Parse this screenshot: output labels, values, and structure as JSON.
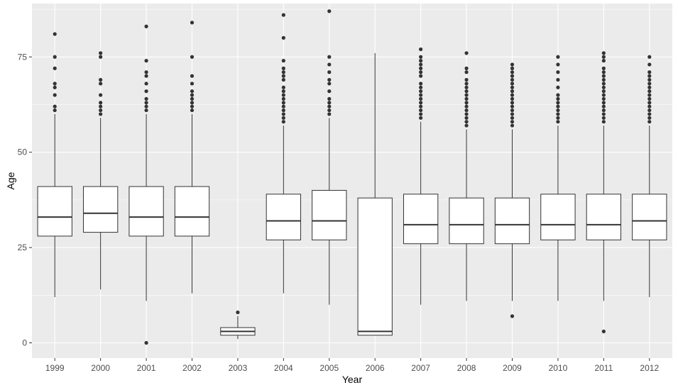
{
  "chart_data": {
    "type": "box",
    "xlabel": "Year",
    "ylabel": "Age",
    "ylim": [
      -4,
      89
    ],
    "yticks": [
      0,
      25,
      50,
      75
    ],
    "grid": true,
    "colors": {
      "panel_bg": "#EBEBEB",
      "grid_major": "#FFFFFF",
      "box_fill": "#FFFFFF",
      "box_line": "#333333",
      "outlier": "#333333"
    },
    "boxes": [
      {
        "year": "1999",
        "lower_whisker": 12,
        "q1": 28,
        "median": 33,
        "q3": 41,
        "upper_whisker": 60,
        "outliers": [
          61,
          62,
          65,
          67,
          68,
          72,
          75,
          81
        ]
      },
      {
        "year": "2000",
        "lower_whisker": 14,
        "q1": 29,
        "median": 34,
        "q3": 41,
        "upper_whisker": 59,
        "outliers": [
          60,
          61,
          62,
          63,
          65,
          68,
          69,
          75,
          76
        ]
      },
      {
        "year": "2001",
        "lower_whisker": 11,
        "q1": 28,
        "median": 33,
        "q3": 41,
        "upper_whisker": 60,
        "outliers": [
          0,
          61,
          62,
          63,
          64,
          66,
          68,
          70,
          71,
          74,
          83
        ]
      },
      {
        "year": "2002",
        "lower_whisker": 13,
        "q1": 28,
        "median": 33,
        "q3": 41,
        "upper_whisker": 60,
        "outliers": [
          61,
          62,
          63,
          64,
          65,
          66,
          68,
          70,
          75,
          84
        ]
      },
      {
        "year": "2003",
        "lower_whisker": 1,
        "q1": 2,
        "median": 3,
        "q3": 4,
        "upper_whisker": 7,
        "outliers": [
          8
        ]
      },
      {
        "year": "2004",
        "lower_whisker": 13,
        "q1": 27,
        "median": 32,
        "q3": 39,
        "upper_whisker": 57,
        "outliers": [
          58,
          59,
          60,
          61,
          62,
          63,
          64,
          65,
          66,
          67,
          69,
          70,
          71,
          72,
          74,
          80,
          86
        ]
      },
      {
        "year": "2005",
        "lower_whisker": 10,
        "q1": 27,
        "median": 32,
        "q3": 40,
        "upper_whisker": 59,
        "outliers": [
          60,
          61,
          62,
          63,
          64,
          66,
          68,
          69,
          71,
          73,
          75,
          87
        ]
      },
      {
        "year": "2006",
        "lower_whisker": 2,
        "q1": 2,
        "median": 3,
        "q3": 38,
        "upper_whisker": 76,
        "outliers": []
      },
      {
        "year": "2007",
        "lower_whisker": 10,
        "q1": 26,
        "median": 31,
        "q3": 39,
        "upper_whisker": 58,
        "outliers": [
          59,
          60,
          61,
          62,
          63,
          64,
          65,
          66,
          67,
          68,
          70,
          71,
          72,
          73,
          74,
          75,
          77
        ]
      },
      {
        "year": "2008",
        "lower_whisker": 11,
        "q1": 26,
        "median": 31,
        "q3": 38,
        "upper_whisker": 56,
        "outliers": [
          57,
          58,
          59,
          60,
          61,
          62,
          63,
          64,
          65,
          66,
          67,
          68,
          69,
          71,
          72,
          76
        ]
      },
      {
        "year": "2009",
        "lower_whisker": 11,
        "q1": 26,
        "median": 31,
        "q3": 38,
        "upper_whisker": 56,
        "outliers": [
          7,
          57,
          58,
          59,
          60,
          61,
          62,
          63,
          64,
          65,
          66,
          67,
          68,
          69,
          70,
          71,
          72,
          73
        ]
      },
      {
        "year": "2010",
        "lower_whisker": 11,
        "q1": 27,
        "median": 31,
        "q3": 39,
        "upper_whisker": 57,
        "outliers": [
          58,
          59,
          60,
          61,
          62,
          63,
          64,
          65,
          67,
          69,
          71,
          73,
          75
        ]
      },
      {
        "year": "2011",
        "lower_whisker": 11,
        "q1": 27,
        "median": 31,
        "q3": 39,
        "upper_whisker": 57,
        "outliers": [
          3,
          58,
          59,
          60,
          61,
          62,
          63,
          64,
          65,
          66,
          67,
          68,
          69,
          70,
          71,
          72,
          74,
          75,
          76
        ]
      },
      {
        "year": "2012",
        "lower_whisker": 12,
        "q1": 27,
        "median": 32,
        "q3": 39,
        "upper_whisker": 57,
        "outliers": [
          58,
          59,
          60,
          61,
          62,
          63,
          64,
          65,
          66,
          67,
          68,
          69,
          70,
          71,
          73,
          75
        ]
      }
    ]
  }
}
